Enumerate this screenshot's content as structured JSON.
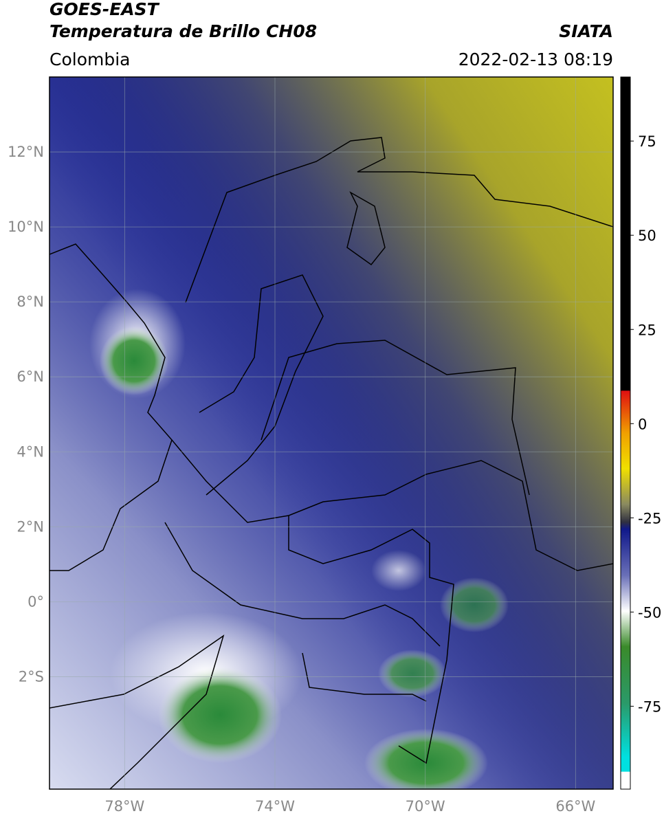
{
  "header": {
    "title": "GOES-EAST",
    "subtitle": "Temperatura de Brillo CH08",
    "source": "SIATA",
    "region": "Colombia",
    "datetime": "2022-02-13 08:19"
  },
  "map": {
    "xlim": [
      -80,
      -65
    ],
    "ylim": [
      -5,
      14
    ],
    "lat_ticks": [
      {
        "value": 12,
        "label": "12°N"
      },
      {
        "value": 10,
        "label": "10°N"
      },
      {
        "value": 8,
        "label": "8°N"
      },
      {
        "value": 6,
        "label": "6°N"
      },
      {
        "value": 4,
        "label": "4°N"
      },
      {
        "value": 2,
        "label": "2°N"
      },
      {
        "value": 0,
        "label": "0°"
      },
      {
        "value": -2,
        "label": "2°S"
      }
    ],
    "lon_ticks": [
      {
        "value": -78,
        "label": "78°W"
      },
      {
        "value": -74,
        "label": "74°W"
      },
      {
        "value": -70,
        "label": "70°W"
      },
      {
        "value": -66,
        "label": "66°W"
      }
    ]
  },
  "colorbar": {
    "lim": [
      -97,
      92
    ],
    "ticks": [
      75,
      50,
      25,
      0,
      -25,
      -50,
      -75
    ]
  }
}
